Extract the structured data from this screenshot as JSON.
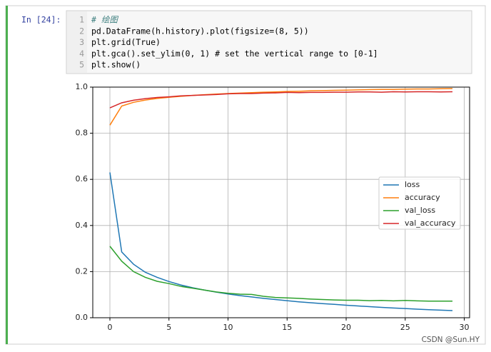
{
  "prompt": "In [24]:",
  "code": {
    "lines": [
      {
        "number": "1",
        "text": "# 绘图"
      },
      {
        "number": "2",
        "text": "pd.DataFrame(h.history).plot(figsize=(8, 5))"
      },
      {
        "number": "3",
        "text": "plt.grid(True)"
      },
      {
        "number": "4",
        "text": "plt.gca().set_ylim(0, 1)  # set the vertical range to [0-1]"
      },
      {
        "number": "5",
        "text": "plt.show()"
      }
    ]
  },
  "watermark": "CSDN @Sun.HY",
  "chart_data": {
    "type": "line",
    "x": [
      0,
      1,
      2,
      3,
      4,
      5,
      6,
      7,
      8,
      9,
      10,
      11,
      12,
      13,
      14,
      15,
      16,
      17,
      18,
      19,
      20,
      21,
      22,
      23,
      24,
      25,
      26,
      27,
      28,
      29
    ],
    "series": [
      {
        "name": "loss",
        "color": "#1f77b4",
        "values": [
          0.63,
          0.285,
          0.232,
          0.197,
          0.175,
          0.157,
          0.142,
          0.13,
          0.12,
          0.111,
          0.103,
          0.096,
          0.09,
          0.084,
          0.079,
          0.074,
          0.069,
          0.065,
          0.061,
          0.058,
          0.054,
          0.051,
          0.048,
          0.045,
          0.042,
          0.04,
          0.037,
          0.035,
          0.033,
          0.031
        ]
      },
      {
        "name": "accuracy",
        "color": "#ff7f0e",
        "values": [
          0.835,
          0.918,
          0.934,
          0.944,
          0.951,
          0.956,
          0.96,
          0.964,
          0.967,
          0.97,
          0.972,
          0.974,
          0.976,
          0.978,
          0.979,
          0.981,
          0.982,
          0.984,
          0.985,
          0.986,
          0.987,
          0.988,
          0.989,
          0.99,
          0.99,
          0.991,
          0.992,
          0.992,
          0.993,
          0.994
        ]
      },
      {
        "name": "val_loss",
        "color": "#2ca02c",
        "values": [
          0.31,
          0.245,
          0.2,
          0.175,
          0.158,
          0.148,
          0.136,
          0.128,
          0.12,
          0.112,
          0.106,
          0.102,
          0.101,
          0.093,
          0.088,
          0.086,
          0.084,
          0.081,
          0.079,
          0.077,
          0.076,
          0.076,
          0.074,
          0.075,
          0.073,
          0.075,
          0.073,
          0.072,
          0.072,
          0.072
        ]
      },
      {
        "name": "val_accuracy",
        "color": "#d62728",
        "values": [
          0.91,
          0.932,
          0.943,
          0.95,
          0.955,
          0.958,
          0.962,
          0.964,
          0.966,
          0.968,
          0.971,
          0.972,
          0.972,
          0.974,
          0.975,
          0.977,
          0.976,
          0.977,
          0.977,
          0.978,
          0.978,
          0.979,
          0.979,
          0.978,
          0.98,
          0.979,
          0.98,
          0.98,
          0.979,
          0.98
        ]
      }
    ],
    "xlim": [
      -1.45,
      30.45
    ],
    "xticks": [
      0,
      5,
      10,
      15,
      20,
      25,
      30
    ],
    "ylim": [
      0,
      1
    ],
    "yticks": [
      {
        "value": 0,
        "label": "0.0"
      },
      0.2,
      0.4,
      0.6,
      0.8,
      {
        "value": 1,
        "label": "1.0"
      }
    ],
    "grid": true,
    "legend": "center right"
  }
}
